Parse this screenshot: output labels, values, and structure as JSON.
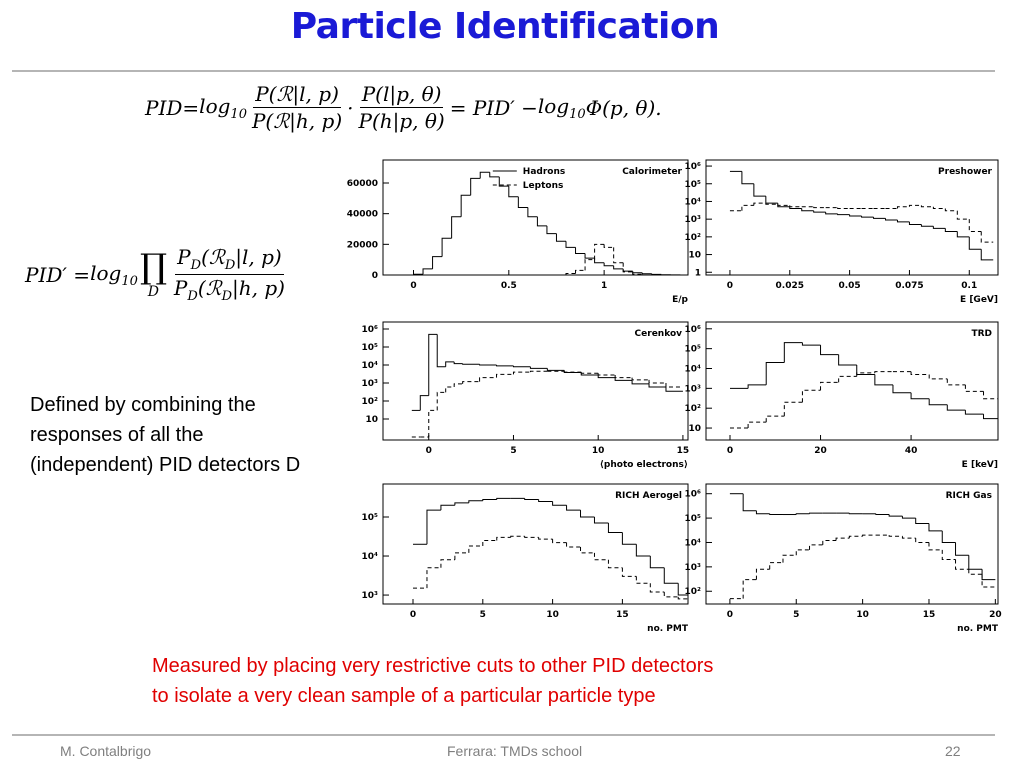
{
  "title": "Particle Identification",
  "formulas": [
    [
      "PID",
      " = ",
      {
        "base": "log",
        "sub": "10"
      },
      " ",
      {
        "num": "P(ℛ|l, p)",
        "den": "P(ℛ|h, p)"
      },
      "·",
      {
        "num": "P(l|p, θ)",
        "den": "P(h|p, θ)"
      },
      " = PID′ − ",
      {
        "base": "log",
        "sub": "10"
      },
      " Φ(p, θ)."
    ],
    [
      "PID′ = ",
      {
        "base": "log",
        "sub": "10"
      },
      " ",
      {
        "base": "∏",
        "under": "D"
      },
      " ",
      {
        "num": [
          {
            "base": "P",
            "sub": "D"
          },
          "(",
          {
            "base": "ℛ",
            "sub": "D"
          },
          "|l, p)"
        ],
        "den": [
          {
            "base": "P",
            "sub": "D"
          },
          "(",
          {
            "base": "ℛ",
            "sub": "D"
          },
          "|h, p)"
        ]
      }
    ]
  ],
  "text": [
    "Defined by combining the",
    "responses of all the",
    "(independent) PID detectors D"
  ],
  "note": [
    "Measured by placing very restrictive cuts to other PID detectors",
    "to isolate a very clean sample of a particular particle type"
  ],
  "footer": {
    "author": "M. Contalbrigo",
    "event": "Ferrara: TMDs school",
    "page": "22"
  },
  "chart_data": [
    {
      "type": "histogram",
      "title": "Calorimeter",
      "x_label": "E/p",
      "log_y": false,
      "bins": [
        0,
        0.05,
        0.1,
        0.15,
        0.2,
        0.25,
        0.3,
        0.35,
        0.4,
        0.45,
        0.5,
        0.55,
        0.6,
        0.65,
        0.7,
        0.75,
        0.8,
        0.85,
        0.9,
        0.95,
        1,
        1.05,
        1.1,
        1.15,
        1.2,
        1.25,
        1.3,
        1.35,
        1.4
      ],
      "xlim": [
        -0.16,
        1.44
      ],
      "ylim": [
        0,
        75000
      ],
      "xticks": [
        0,
        0.5,
        1
      ],
      "yticks": [
        0,
        20000,
        40000,
        60000
      ],
      "series": [
        {
          "name": "Hadrons",
          "color": "#000000",
          "style": "solid",
          "values": [
            500,
            4000,
            12000,
            24000,
            38000,
            52000,
            63000,
            67000,
            64000,
            58000,
            51000,
            44000,
            38000,
            32000,
            27000,
            22000,
            18000,
            14000,
            11000,
            8000,
            6000,
            4000,
            2500,
            1500,
            800,
            400,
            200,
            100
          ]
        },
        {
          "name": "Leptons",
          "color": "#000000",
          "style": "dashed",
          "values": [
            0,
            0,
            0,
            0,
            0,
            0,
            0,
            0,
            0,
            0,
            0,
            0,
            0,
            0,
            0,
            0,
            1000,
            3000,
            10000,
            20000,
            18000,
            8000,
            2000,
            500,
            0,
            0,
            0,
            0
          ]
        }
      ]
    },
    {
      "type": "histogram",
      "title": "Preshower",
      "x_label": "E [GeV]",
      "log_y": true,
      "bins": [
        0,
        0.005,
        0.01,
        0.015,
        0.02,
        0.025,
        0.03,
        0.035,
        0.04,
        0.045,
        0.05,
        0.055,
        0.06,
        0.065,
        0.07,
        0.075,
        0.08,
        0.085,
        0.09,
        0.095,
        0.1,
        0.105,
        0.11
      ],
      "xlim": [
        -0.01,
        0.112
      ],
      "ylim": [
        0.7,
        2200000
      ],
      "xticks": [
        0,
        0.025,
        0.05,
        0.075,
        0.1
      ],
      "yticks": [
        1,
        10,
        {
          "value": 100,
          "label": "10²"
        },
        {
          "value": 1000,
          "label": "10³"
        },
        {
          "value": 10000,
          "label": "10⁴"
        },
        {
          "value": 100000,
          "label": "10⁵"
        },
        {
          "value": 1000000,
          "label": "10⁶"
        }
      ],
      "series": [
        {
          "color": "#000000",
          "style": "solid",
          "values": [
            500000,
            100000,
            20000,
            8000,
            5000,
            4000,
            3000,
            2500,
            2000,
            1800,
            1500,
            1300,
            1100,
            900,
            700,
            500,
            400,
            300,
            200,
            100,
            20,
            5
          ]
        },
        {
          "color": "#000000",
          "style": "dashed",
          "values": [
            3000,
            6000,
            8000,
            7000,
            6000,
            5000,
            5000,
            4500,
            4500,
            4000,
            4000,
            4000,
            4000,
            4000,
            5000,
            6000,
            5000,
            4000,
            3000,
            1000,
            200,
            50
          ]
        }
      ]
    },
    {
      "type": "histogram",
      "title": "Cerenkov",
      "x_label": "⟨photo electrons⟩",
      "log_y": true,
      "bins": [
        -1,
        -0.5,
        0,
        0.5,
        1,
        1.5,
        2,
        3,
        4,
        5,
        6,
        7,
        8,
        9,
        10,
        11,
        12,
        13,
        14,
        15
      ],
      "xlim": [
        -2.7,
        15.3
      ],
      "ylim": [
        0.68,
        2450000
      ],
      "xticks": [
        0,
        5,
        10,
        15
      ],
      "yticks": [
        10,
        {
          "value": 100,
          "label": "10²"
        },
        {
          "value": 1000,
          "label": "10³"
        },
        {
          "value": 10000,
          "label": "10⁴"
        },
        {
          "value": 100000,
          "label": "10⁵"
        },
        {
          "value": 1000000,
          "label": "10⁶"
        }
      ],
      "series": [
        {
          "color": "#000000",
          "style": "solid",
          "values": [
            30,
            200,
            500000,
            8000,
            15000,
            12000,
            11000,
            10000,
            9000,
            8000,
            6500,
            5000,
            3800,
            2800,
            2000,
            1400,
            900,
            600,
            350
          ]
        },
        {
          "color": "#000000",
          "style": "dashed",
          "values": [
            1,
            1,
            30,
            300,
            600,
            900,
            1200,
            2000,
            3000,
            4000,
            4500,
            4500,
            4000,
            3500,
            2800,
            2000,
            1500,
            1000,
            600
          ]
        }
      ]
    },
    {
      "type": "histogram",
      "title": "TRD",
      "x_label": "E [keV]",
      "log_y": true,
      "bins": [
        0,
        4,
        8,
        12,
        16,
        20,
        24,
        28,
        32,
        36,
        40,
        44,
        48,
        52,
        56,
        60
      ],
      "xlim": [
        -5.3,
        59.2
      ],
      "ylim": [
        2.5,
        2200000
      ],
      "xticks": [
        0,
        20,
        40
      ],
      "yticks": [
        10,
        {
          "value": 100,
          "label": "10²"
        },
        {
          "value": 1000,
          "label": "10³"
        },
        {
          "value": 10000,
          "label": "10⁴"
        },
        {
          "value": 100000,
          "label": "10⁵"
        },
        {
          "value": 1000000,
          "label": "10⁶"
        }
      ],
      "series": [
        {
          "color": "#000000",
          "style": "solid",
          "values": [
            1000,
            1500,
            20000,
            200000,
            150000,
            50000,
            15000,
            5000,
            1500,
            600,
            300,
            150,
            80,
            50,
            30
          ]
        },
        {
          "color": "#000000",
          "style": "dashed",
          "values": [
            10,
            20,
            40,
            200,
            800,
            2000,
            4000,
            6000,
            7000,
            7000,
            5000,
            3000,
            1500,
            700,
            300
          ]
        }
      ]
    },
    {
      "type": "histogram",
      "title": "RICH Aerogel",
      "x_label": "no. PMT",
      "log_y": true,
      "bins": [
        0,
        1,
        2,
        3,
        4,
        5,
        6,
        7,
        8,
        9,
        10,
        11,
        12,
        13,
        14,
        15,
        16,
        17,
        18,
        19,
        20
      ],
      "xlim": [
        -2.15,
        19.7
      ],
      "ylim": [
        590,
        700000
      ],
      "xticks": [
        0,
        5,
        10,
        15
      ],
      "yticks": [
        {
          "value": 1000,
          "label": "10³"
        },
        {
          "value": 10000,
          "label": "10⁴"
        },
        {
          "value": 100000,
          "label": "10⁵"
        }
      ],
      "series": [
        {
          "color": "#000000",
          "style": "solid",
          "values": [
            20000,
            150000,
            200000,
            230000,
            260000,
            280000,
            300000,
            300000,
            280000,
            250000,
            200000,
            150000,
            100000,
            70000,
            40000,
            20000,
            10000,
            5000,
            2000,
            1000
          ]
        },
        {
          "color": "#000000",
          "style": "dashed",
          "values": [
            1500,
            5000,
            8000,
            12000,
            18000,
            25000,
            30000,
            32000,
            30000,
            27000,
            22000,
            17000,
            12000,
            8000,
            5000,
            3000,
            2000,
            1200,
            900,
            800
          ]
        }
      ]
    },
    {
      "type": "histogram",
      "title": "RICH Gas",
      "x_label": "no. PMT",
      "log_y": true,
      "bins": [
        0,
        1,
        2,
        3,
        4,
        5,
        6,
        7,
        8,
        9,
        10,
        11,
        12,
        13,
        14,
        15,
        16,
        17,
        18,
        19,
        20
      ],
      "xlim": [
        -1.8,
        20.2
      ],
      "ylim": [
        30,
        2500000
      ],
      "xticks": [
        0,
        5,
        10,
        15,
        20
      ],
      "yticks": [
        {
          "value": 100,
          "label": "10²"
        },
        {
          "value": 1000,
          "label": "10³"
        },
        {
          "value": 10000,
          "label": "10⁴"
        },
        {
          "value": 100000,
          "label": "10⁵"
        },
        {
          "value": 1000000,
          "label": "10⁶"
        }
      ],
      "series": [
        {
          "color": "#000000",
          "style": "solid",
          "values": [
            1000000,
            200000,
            150000,
            140000,
            140000,
            150000,
            160000,
            160000,
            160000,
            150000,
            150000,
            140000,
            120000,
            100000,
            60000,
            30000,
            10000,
            3000,
            800,
            300
          ]
        },
        {
          "color": "#000000",
          "style": "dashed",
          "values": [
            50,
            300,
            800,
            1500,
            3000,
            5000,
            8000,
            12000,
            15000,
            18000,
            20000,
            20000,
            18000,
            15000,
            10000,
            5000,
            2000,
            800,
            500,
            150
          ]
        }
      ]
    }
  ]
}
